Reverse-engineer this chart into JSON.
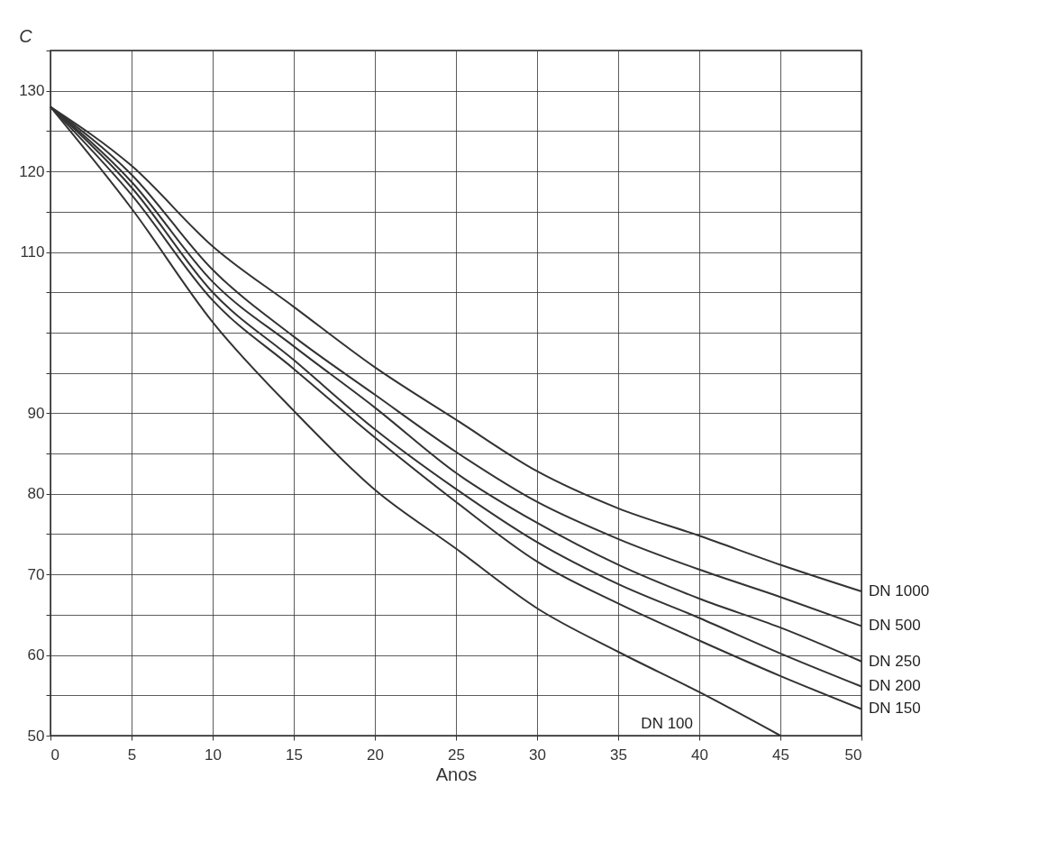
{
  "chart_data": {
    "type": "line",
    "xlabel": "Anos",
    "ylabel": "C",
    "x": [
      0,
      5,
      10,
      15,
      20,
      25,
      30,
      35,
      40,
      45,
      50
    ],
    "series": [
      {
        "name": "DN 1000",
        "color": "#333333",
        "values": [
          128,
          120.7,
          110.7,
          103.2,
          95.7,
          89.2,
          82.8,
          78.2,
          74.8,
          71.2,
          67.9
        ]
      },
      {
        "name": "DN 500",
        "color": "#333333",
        "values": [
          128,
          119.6,
          107.8,
          99.5,
          92.3,
          85.2,
          79,
          74.4,
          70.6,
          67.2,
          63.6
        ]
      },
      {
        "name": "DN 250",
        "color": "#333333",
        "values": [
          128,
          118.7,
          106.3,
          98.3,
          90.7,
          82.6,
          76.4,
          71.2,
          67,
          63.4,
          59.2
        ]
      },
      {
        "name": "DN 200",
        "color": "#333333",
        "values": [
          128,
          118,
          105,
          96.6,
          88,
          80.6,
          74,
          68.8,
          64.6,
          60.2,
          56.1
        ]
      },
      {
        "name": "DN 150",
        "color": "#333333",
        "values": [
          128,
          117.1,
          104,
          95.5,
          87,
          79,
          71.6,
          66.4,
          61.8,
          57.4,
          53.3
        ]
      },
      {
        "name": "DN 100",
        "color": "#333333",
        "values": [
          128,
          115.4,
          101.3,
          90.3,
          80.5,
          73.2,
          65.8,
          60.4,
          55.4,
          50,
          null
        ]
      }
    ],
    "xlim": [
      0,
      50
    ],
    "xticks": [
      0,
      5,
      10,
      15,
      20,
      25,
      30,
      35,
      40,
      45,
      50
    ],
    "ylim": [
      50,
      135
    ],
    "yticks": [
      50,
      {
        "value": 55,
        "label": null
      },
      60,
      {
        "value": 65,
        "label": null
      },
      70,
      {
        "value": 75,
        "label": null
      },
      80,
      {
        "value": 85,
        "label": null
      },
      90,
      {
        "value": 95,
        "label": null
      },
      {
        "value": 100,
        "label": null
      },
      {
        "value": 105,
        "label": null
      },
      110,
      {
        "value": 115,
        "label": null
      },
      120,
      {
        "value": 125,
        "label": null
      },
      130,
      {
        "value": 135,
        "label": null
      }
    ],
    "grid": true,
    "legend": false,
    "marker": "none",
    "line_style": "solid"
  }
}
